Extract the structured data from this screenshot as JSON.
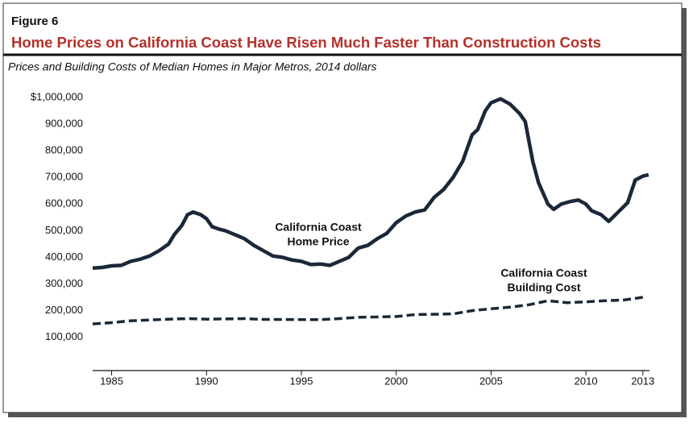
{
  "chart_data": {
    "type": "line",
    "figure_label": "Figure 6",
    "title": "Home Prices on California Coast Have Risen Much Faster Than Construction Costs",
    "subtitle": "Prices and Building Costs of Median Homes in Major Metros, 2014 dollars",
    "xlim": [
      1984,
      2013.35
    ],
    "xticks": [
      1985,
      1990,
      1995,
      2000,
      2005,
      2010,
      2013
    ],
    "ylim": [
      -25000,
      1000000
    ],
    "yticks": [
      {
        "value": 100000,
        "label": "100,000"
      },
      {
        "value": 200000,
        "label": "200,000"
      },
      {
        "value": 300000,
        "label": "300,000"
      },
      {
        "value": 400000,
        "label": "400,000"
      },
      {
        "value": 500000,
        "label": "500,000"
      },
      {
        "value": 600000,
        "label": "600,000"
      },
      {
        "value": 700000,
        "label": "700,000"
      },
      {
        "value": 800000,
        "label": "800,000"
      },
      {
        "value": 900000,
        "label": "900,000"
      },
      {
        "value": 1000000,
        "label": "$1,000,000"
      }
    ],
    "grid": false,
    "series": [
      {
        "label": [
          "California Coast",
          "Home Price"
        ],
        "color": "#1b2838",
        "line_style": "solid",
        "x": [
          1984,
          1984.5,
          1985,
          1985.5,
          1986,
          1986.5,
          1987,
          1987.5,
          1988,
          1988.3,
          1988.7,
          1989,
          1989.3,
          1989.7,
          1990,
          1990.3,
          1990.7,
          1991,
          1991.5,
          1992,
          1992.5,
          1993,
          1993.5,
          1994,
          1994.5,
          1995,
          1995.5,
          1996,
          1996.5,
          1997,
          1997.5,
          1998,
          1998.5,
          1999,
          1999.5,
          2000,
          2000.5,
          2001,
          2001.5,
          2002,
          2002.5,
          2003,
          2003.5,
          2004,
          2004.3,
          2004.7,
          2005,
          2005.5,
          2006,
          2006.5,
          2006.8,
          2007.2,
          2007.5,
          2008,
          2008.3,
          2008.7,
          2009.2,
          2009.6,
          2010,
          2010.3,
          2010.8,
          2011.2,
          2011.7,
          2012.2,
          2012.6,
          2013,
          2013.3
        ],
        "values": [
          360000,
          362000,
          368000,
          370000,
          385000,
          393000,
          405000,
          425000,
          450000,
          485000,
          520000,
          560000,
          570000,
          560000,
          545000,
          515000,
          505000,
          500000,
          485000,
          470000,
          445000,
          425000,
          405000,
          400000,
          390000,
          385000,
          373000,
          375000,
          370000,
          385000,
          400000,
          435000,
          445000,
          470000,
          490000,
          530000,
          555000,
          570000,
          578000,
          625000,
          655000,
          700000,
          760000,
          860000,
          880000,
          950000,
          980000,
          995000,
          975000,
          940000,
          910000,
          760000,
          680000,
          600000,
          580000,
          600000,
          610000,
          615000,
          600000,
          575000,
          560000,
          535000,
          570000,
          605000,
          690000,
          705000,
          710000
        ]
      },
      {
        "label": [
          "California Coast",
          "Building Cost"
        ],
        "color": "#1b2838",
        "line_style": "dashed",
        "x": [
          1984,
          1985,
          1986,
          1988,
          1989,
          1990,
          1992,
          1993,
          1996,
          1997,
          1998,
          2000,
          2001,
          2003,
          2004,
          2005,
          2006,
          2007,
          2008,
          2009,
          2010,
          2011,
          2012,
          2013
        ],
        "values": [
          150000,
          155000,
          162000,
          168000,
          170000,
          168000,
          170000,
          167000,
          166000,
          170000,
          175000,
          178000,
          185000,
          188000,
          200000,
          207000,
          213000,
          222000,
          237000,
          230000,
          233000,
          237000,
          240000,
          250000
        ]
      }
    ]
  }
}
